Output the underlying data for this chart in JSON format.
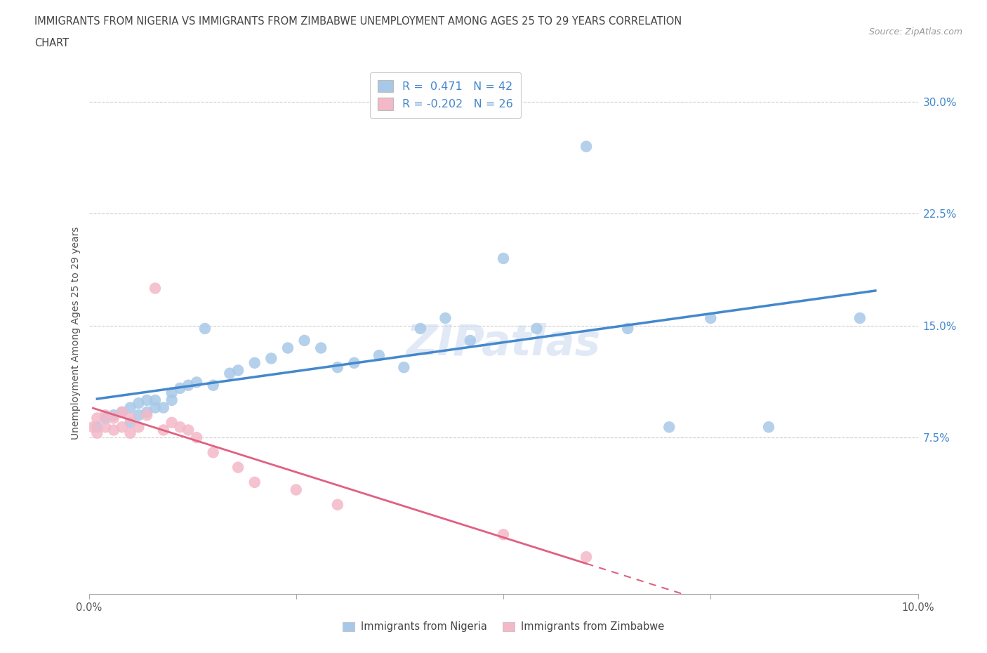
{
  "title_line1": "IMMIGRANTS FROM NIGERIA VS IMMIGRANTS FROM ZIMBABWE UNEMPLOYMENT AMONG AGES 25 TO 29 YEARS CORRELATION",
  "title_line2": "CHART",
  "source_text": "Source: ZipAtlas.com",
  "ylabel": "Unemployment Among Ages 25 to 29 years",
  "xlim": [
    0.0,
    0.1
  ],
  "ylim": [
    -0.03,
    0.32
  ],
  "yticks": [
    0.075,
    0.15,
    0.225,
    0.3
  ],
  "ytick_labels": [
    "7.5%",
    "15.0%",
    "22.5%",
    "30.0%"
  ],
  "xticks": [
    0.0,
    0.025,
    0.05,
    0.075,
    0.1
  ],
  "xtick_labels": [
    "0.0%",
    "",
    "",
    "",
    "10.0%"
  ],
  "nigeria_color": "#a8c8e8",
  "zimbabwe_color": "#f4b8c8",
  "nigeria_line_color": "#4488cc",
  "zimbabwe_line_color": "#e06080",
  "legend_R_nigeria": "R =  0.471",
  "legend_N_nigeria": "N = 42",
  "legend_R_zimbabwe": "R = -0.202",
  "legend_N_zimbabwe": "N = 26",
  "watermark": "ZIPatlas",
  "nigeria_x": [
    0.001,
    0.002,
    0.003,
    0.004,
    0.005,
    0.005,
    0.006,
    0.006,
    0.007,
    0.007,
    0.008,
    0.008,
    0.009,
    0.01,
    0.01,
    0.011,
    0.012,
    0.013,
    0.014,
    0.015,
    0.017,
    0.018,
    0.02,
    0.022,
    0.024,
    0.026,
    0.028,
    0.03,
    0.032,
    0.035,
    0.038,
    0.04,
    0.043,
    0.046,
    0.05,
    0.054,
    0.06,
    0.065,
    0.07,
    0.075,
    0.082,
    0.093
  ],
  "nigeria_y": [
    0.082,
    0.088,
    0.09,
    0.092,
    0.085,
    0.095,
    0.09,
    0.098,
    0.092,
    0.1,
    0.095,
    0.1,
    0.095,
    0.1,
    0.105,
    0.108,
    0.11,
    0.112,
    0.148,
    0.11,
    0.118,
    0.12,
    0.125,
    0.128,
    0.135,
    0.14,
    0.135,
    0.122,
    0.125,
    0.13,
    0.122,
    0.148,
    0.155,
    0.14,
    0.195,
    0.148,
    0.27,
    0.148,
    0.082,
    0.155,
    0.082,
    0.155
  ],
  "zimbabwe_x": [
    0.0005,
    0.001,
    0.001,
    0.002,
    0.002,
    0.003,
    0.003,
    0.004,
    0.004,
    0.005,
    0.005,
    0.006,
    0.007,
    0.008,
    0.009,
    0.01,
    0.011,
    0.012,
    0.013,
    0.015,
    0.018,
    0.02,
    0.025,
    0.03,
    0.05,
    0.06
  ],
  "zimbabwe_y": [
    0.082,
    0.078,
    0.088,
    0.082,
    0.09,
    0.08,
    0.088,
    0.082,
    0.092,
    0.078,
    0.088,
    0.082,
    0.09,
    0.175,
    0.08,
    0.085,
    0.082,
    0.08,
    0.075,
    0.065,
    0.055,
    0.045,
    0.04,
    0.03,
    0.01,
    -0.005
  ]
}
